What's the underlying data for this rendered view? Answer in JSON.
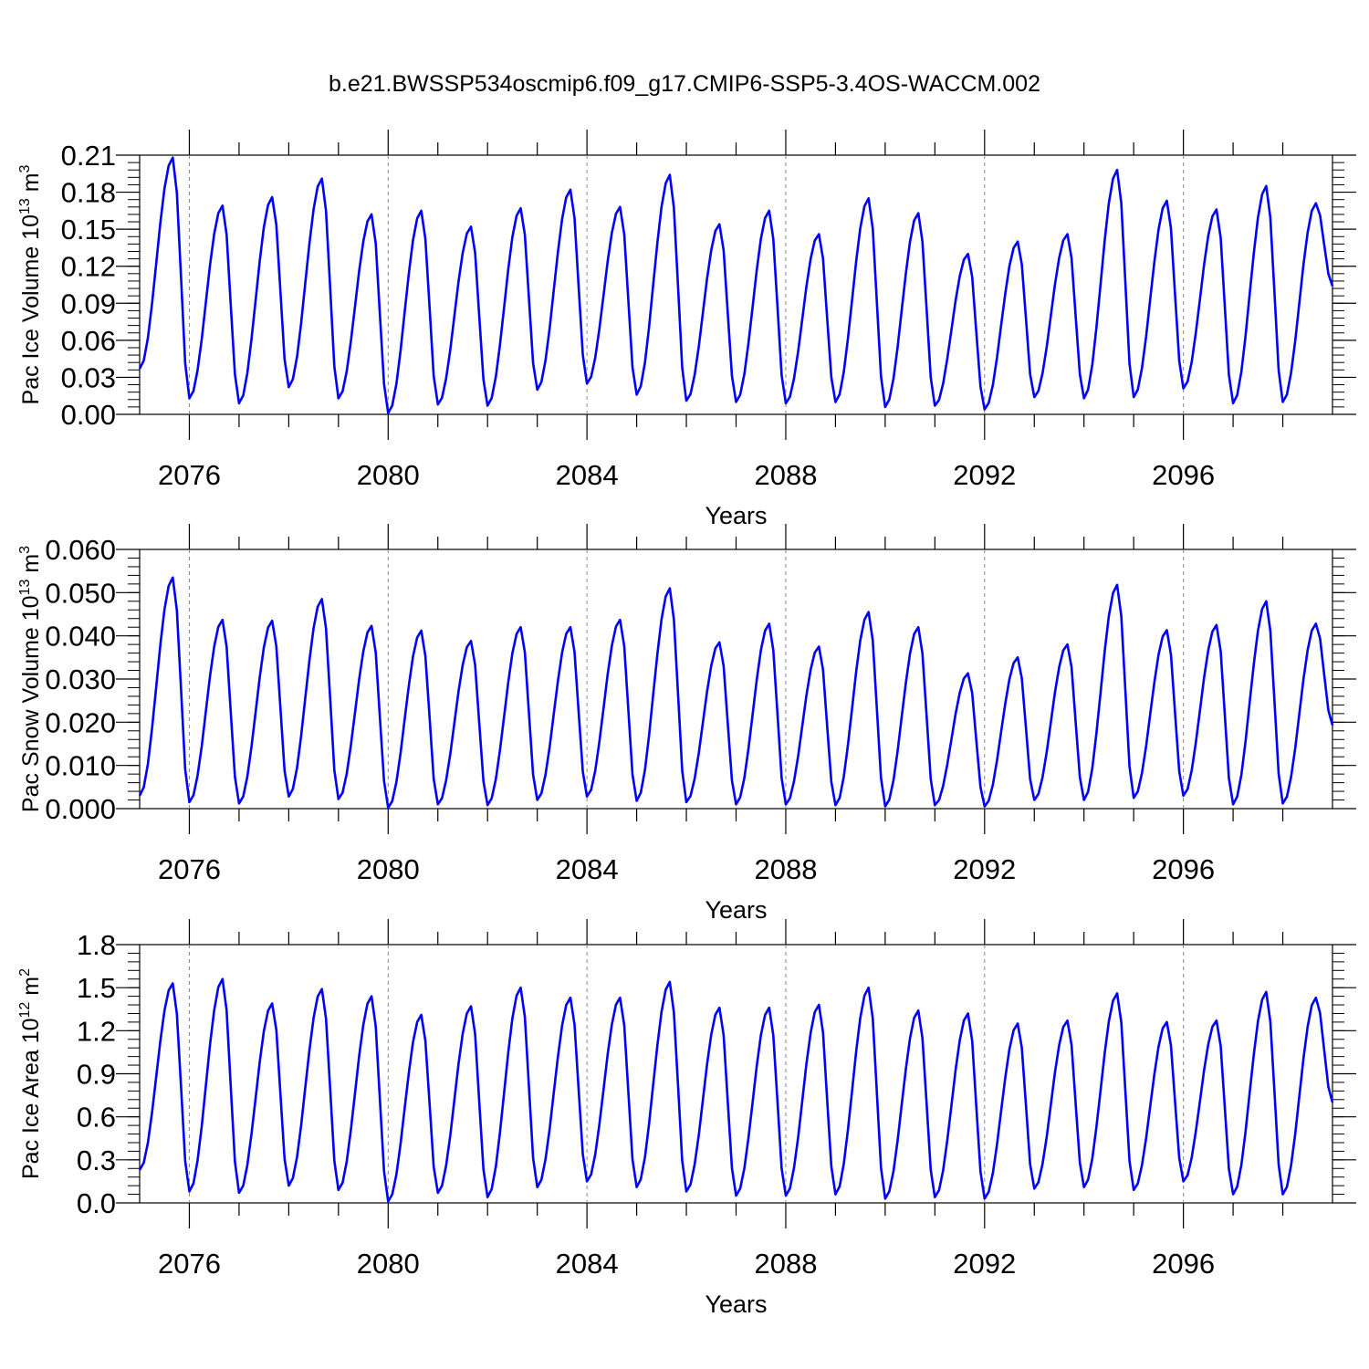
{
  "title": "b.e21.BWSSP534oscmip6.f09_g17.CMIP6-SSP5-3.4OS-WACCM.002",
  "colors": {
    "series": "#0000ff",
    "axis": "#000000",
    "gridline": "#888888"
  },
  "chart_data": [
    {
      "type": "line",
      "ylabel_parts": [
        "Pac Ice Volume 10",
        "13",
        " m",
        "3"
      ],
      "xlabel": "Years",
      "xlim": [
        2075.0,
        2099.0
      ],
      "ylim": [
        0,
        0.21
      ],
      "y_ticks": [
        "0.00",
        "0.03",
        "0.06",
        "0.09",
        "0.12",
        "0.15",
        "0.18",
        "0.21"
      ],
      "y_tick_values": [
        0,
        0.03,
        0.06,
        0.09,
        0.12,
        0.15,
        0.18,
        0.21
      ],
      "x_ticks": [
        "2076",
        "2080",
        "2084",
        "2088",
        "2092",
        "2096"
      ],
      "x_tick_values": [
        2076,
        2080,
        2084,
        2088,
        2092,
        2096
      ],
      "series": [
        {
          "peaks": [
            0.208,
            0.169,
            0.176,
            0.191,
            0.162,
            0.165,
            0.152,
            0.167,
            0.182,
            0.168,
            0.194,
            0.154,
            0.165,
            0.146,
            0.175,
            0.163,
            0.13,
            0.14,
            0.146,
            0.198,
            0.173,
            0.166,
            0.185,
            0.171
          ],
          "troughs": [
            0.037,
            0.013,
            0.009,
            0.022,
            0.013,
            0.001,
            0.008,
            0.007,
            0.02,
            0.025,
            0.016,
            0.011,
            0.01,
            0.009,
            0.01,
            0.006,
            0.007,
            0.004,
            0.014,
            0.013,
            0.014,
            0.021,
            0.009,
            0.01
          ],
          "end_value": 0.104
        }
      ]
    },
    {
      "type": "line",
      "ylabel_parts": [
        "Pac Snow Volume 10",
        "13",
        " m",
        "3"
      ],
      "xlabel": "Years",
      "xlim": [
        2075.0,
        2099.0
      ],
      "ylim": [
        0,
        0.06
      ],
      "y_ticks": [
        "0.000",
        "0.010",
        "0.020",
        "0.030",
        "0.040",
        "0.050",
        "0.060"
      ],
      "y_tick_values": [
        0,
        0.01,
        0.02,
        0.03,
        0.04,
        0.05,
        0.06
      ],
      "x_ticks": [
        "2076",
        "2080",
        "2084",
        "2088",
        "2092",
        "2096"
      ],
      "x_tick_values": [
        2076,
        2080,
        2084,
        2088,
        2092,
        2096
      ],
      "series": [
        {
          "peaks": [
            0.0535,
            0.0437,
            0.0435,
            0.0485,
            0.0423,
            0.0412,
            0.0388,
            0.042,
            0.042,
            0.0437,
            0.051,
            0.0385,
            0.0428,
            0.0375,
            0.0455,
            0.042,
            0.0313,
            0.035,
            0.038,
            0.0518,
            0.0413,
            0.0425,
            0.048,
            0.0428
          ],
          "troughs": [
            0.003,
            0.0015,
            0.0012,
            0.0028,
            0.0022,
            0.0002,
            0.001,
            0.0008,
            0.002,
            0.0028,
            0.0018,
            0.0015,
            0.001,
            0.001,
            0.0008,
            0.0005,
            0.0008,
            0.0005,
            0.002,
            0.002,
            0.0025,
            0.003,
            0.001,
            0.0012
          ],
          "end_value": 0.0193
        }
      ]
    },
    {
      "type": "line",
      "ylabel_parts": [
        "Pac Ice Area 10",
        "12",
        " m",
        "2"
      ],
      "xlabel": "Years",
      "xlim": [
        2075.0,
        2099.0
      ],
      "ylim": [
        0,
        1.8
      ],
      "y_ticks": [
        "0.0",
        "0.3",
        "0.6",
        "0.9",
        "1.2",
        "1.5",
        "1.8"
      ],
      "y_tick_values": [
        0,
        0.3,
        0.6,
        0.9,
        1.2,
        1.5,
        1.8
      ],
      "x_ticks": [
        "2076",
        "2080",
        "2084",
        "2088",
        "2092",
        "2096"
      ],
      "x_tick_values": [
        2076,
        2080,
        2084,
        2088,
        2092,
        2096
      ],
      "series": [
        {
          "peaks": [
            1.53,
            1.56,
            1.39,
            1.49,
            1.44,
            1.31,
            1.37,
            1.5,
            1.43,
            1.43,
            1.54,
            1.36,
            1.36,
            1.38,
            1.5,
            1.34,
            1.32,
            1.25,
            1.27,
            1.46,
            1.26,
            1.27,
            1.47,
            1.43
          ],
          "troughs": [
            0.23,
            0.08,
            0.07,
            0.12,
            0.09,
            0.01,
            0.07,
            0.04,
            0.11,
            0.15,
            0.11,
            0.08,
            0.05,
            0.05,
            0.06,
            0.03,
            0.04,
            0.03,
            0.1,
            0.11,
            0.09,
            0.15,
            0.06,
            0.06
          ],
          "end_value": 0.7
        }
      ]
    }
  ]
}
